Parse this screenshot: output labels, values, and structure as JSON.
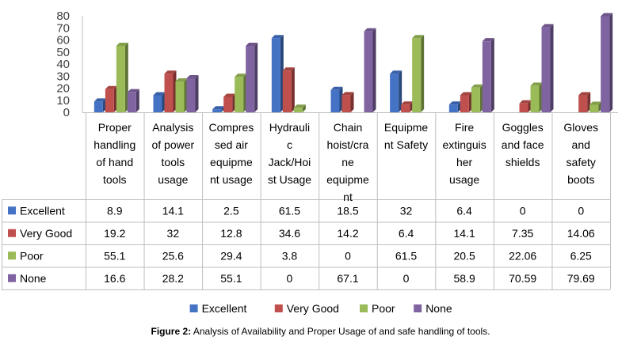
{
  "caption": {
    "label": "Figure 2:",
    "text": " Analysis of Availability and Proper Usage of and safe handling of tools."
  },
  "chart_data": {
    "type": "bar",
    "title": "",
    "xlabel": "",
    "ylabel": "",
    "ylim": [
      0,
      80
    ],
    "yticks": [
      0,
      10,
      20,
      30,
      40,
      50,
      60,
      70,
      80
    ],
    "grid": false,
    "legend": "bottom",
    "data_table": true,
    "categories": [
      "Proper handling of hand tools",
      "Analysis of power tools usage",
      "Compressed air equipment usage",
      "Hydraulic Jack/Hoist Usage",
      "Chain hoist/crane equipment",
      "Equipment Safety",
      "Fire extinguisher usage",
      "Goggles and face shields",
      "Gloves and safety boots"
    ],
    "category_lines": [
      [
        "Proper",
        "handling",
        "of hand",
        "tools"
      ],
      [
        "Analysis",
        "of power",
        "tools",
        "usage"
      ],
      [
        "Compres",
        "sed air",
        "equipme",
        "nt usage"
      ],
      [
        "Hydrauli",
        "c",
        "Jack/Hoi",
        "st Usage"
      ],
      [
        "Chain",
        "hoist/cra",
        "ne",
        "equipme",
        "nt"
      ],
      [
        "Equipme",
        "nt Safety"
      ],
      [
        "Fire",
        "extinguis",
        "her",
        "usage"
      ],
      [
        "Goggles",
        "and face",
        "shields"
      ],
      [
        "Gloves",
        "and",
        "safety",
        "boots"
      ]
    ],
    "series": [
      {
        "name": "Excellent",
        "color": "#4472C4",
        "values": [
          8.9,
          14.1,
          2.5,
          61.5,
          18.5,
          32,
          6.4,
          0,
          0
        ],
        "labels": [
          "8.9",
          "14.1",
          "2.5",
          "61.5",
          "18.5",
          "32",
          "6.4",
          "0",
          "0"
        ]
      },
      {
        "name": "Very Good",
        "color": "#C0504D",
        "values": [
          19.2,
          32,
          12.8,
          34.6,
          14.2,
          6.4,
          14.1,
          7.35,
          14.06
        ],
        "labels": [
          "19.2",
          "32",
          "12.8",
          "34.6",
          "14.2",
          "6.4",
          "14.1",
          "7.35",
          "14.06"
        ]
      },
      {
        "name": "Poor",
        "color": "#9BBB59",
        "values": [
          55.1,
          25.6,
          29.4,
          3.8,
          0,
          61.5,
          20.5,
          22.06,
          6.25
        ],
        "labels": [
          "55.1",
          "25.6",
          "29.4",
          "3.8",
          "0",
          "61.5",
          "20.5",
          "22.06",
          "6.25"
        ]
      },
      {
        "name": "None",
        "color": "#8064A2",
        "values": [
          16.6,
          28.2,
          55.1,
          0,
          67.1,
          0,
          58.9,
          70.59,
          79.69
        ],
        "labels": [
          "16.6",
          "28.2",
          "55.1",
          "0",
          "67.1",
          "0",
          "58.9",
          "70.59",
          "79.69"
        ]
      }
    ]
  }
}
